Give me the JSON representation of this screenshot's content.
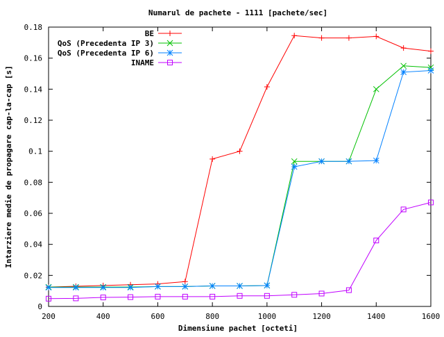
{
  "chart_data": {
    "type": "line",
    "title": "Numarul de pachete - 1111 [pachete/sec]",
    "xlabel": "Dimensiune pachet [octeti]",
    "ylabel": "Intarziere medie de propagare cap-la-cap [s]",
    "xlim": [
      200,
      1600
    ],
    "ylim": [
      0,
      0.18
    ],
    "xticks": [
      200,
      400,
      600,
      800,
      1000,
      1200,
      1400,
      1600
    ],
    "xtick_labels": [
      "200",
      "400",
      "600",
      "800",
      "1000",
      "1200",
      "1400",
      "1600"
    ],
    "yticks": [
      0,
      0.02,
      0.04,
      0.06,
      0.08,
      0.1,
      0.12,
      0.14,
      0.16,
      0.18
    ],
    "ytick_labels": [
      "0",
      "0.02",
      "0.04",
      "0.06",
      "0.08",
      "0.1",
      "0.12",
      "0.14",
      "0.16",
      "0.18"
    ],
    "grid": false,
    "legend_position": "top-left",
    "x": [
      200,
      300,
      400,
      500,
      600,
      700,
      800,
      900,
      1000,
      1100,
      1200,
      1300,
      1400,
      1500,
      1600
    ],
    "series": [
      {
        "name": "BE",
        "color": "#ff0000",
        "marker": "plus",
        "values": [
          0.0125,
          0.013,
          0.0135,
          0.014,
          0.0145,
          0.016,
          0.095,
          0.1,
          0.1415,
          0.1745,
          0.173,
          0.173,
          0.174,
          0.1665,
          0.1645
        ]
      },
      {
        "name": "QoS (Precedenta IP 3)",
        "color": "#00c000",
        "marker": "cross",
        "values": [
          0.0125,
          0.0125,
          0.0125,
          0.0125,
          0.0128,
          0.0128,
          0.0132,
          0.0132,
          0.0135,
          0.0935,
          0.0935,
          0.0935,
          0.14,
          0.155,
          0.154
        ]
      },
      {
        "name": "QoS (Precedenta IP 6)",
        "color": "#0080ff",
        "marker": "star",
        "values": [
          0.0122,
          0.0122,
          0.0122,
          0.0122,
          0.0128,
          0.0128,
          0.0132,
          0.0132,
          0.0135,
          0.09,
          0.0935,
          0.0935,
          0.094,
          0.151,
          0.152
        ]
      },
      {
        "name": "INAME",
        "color": "#c000ff",
        "marker": "square",
        "values": [
          0.005,
          0.0052,
          0.0058,
          0.006,
          0.0063,
          0.0063,
          0.0063,
          0.0068,
          0.0068,
          0.0075,
          0.0083,
          0.0105,
          0.0425,
          0.0625,
          0.067
        ]
      }
    ]
  }
}
